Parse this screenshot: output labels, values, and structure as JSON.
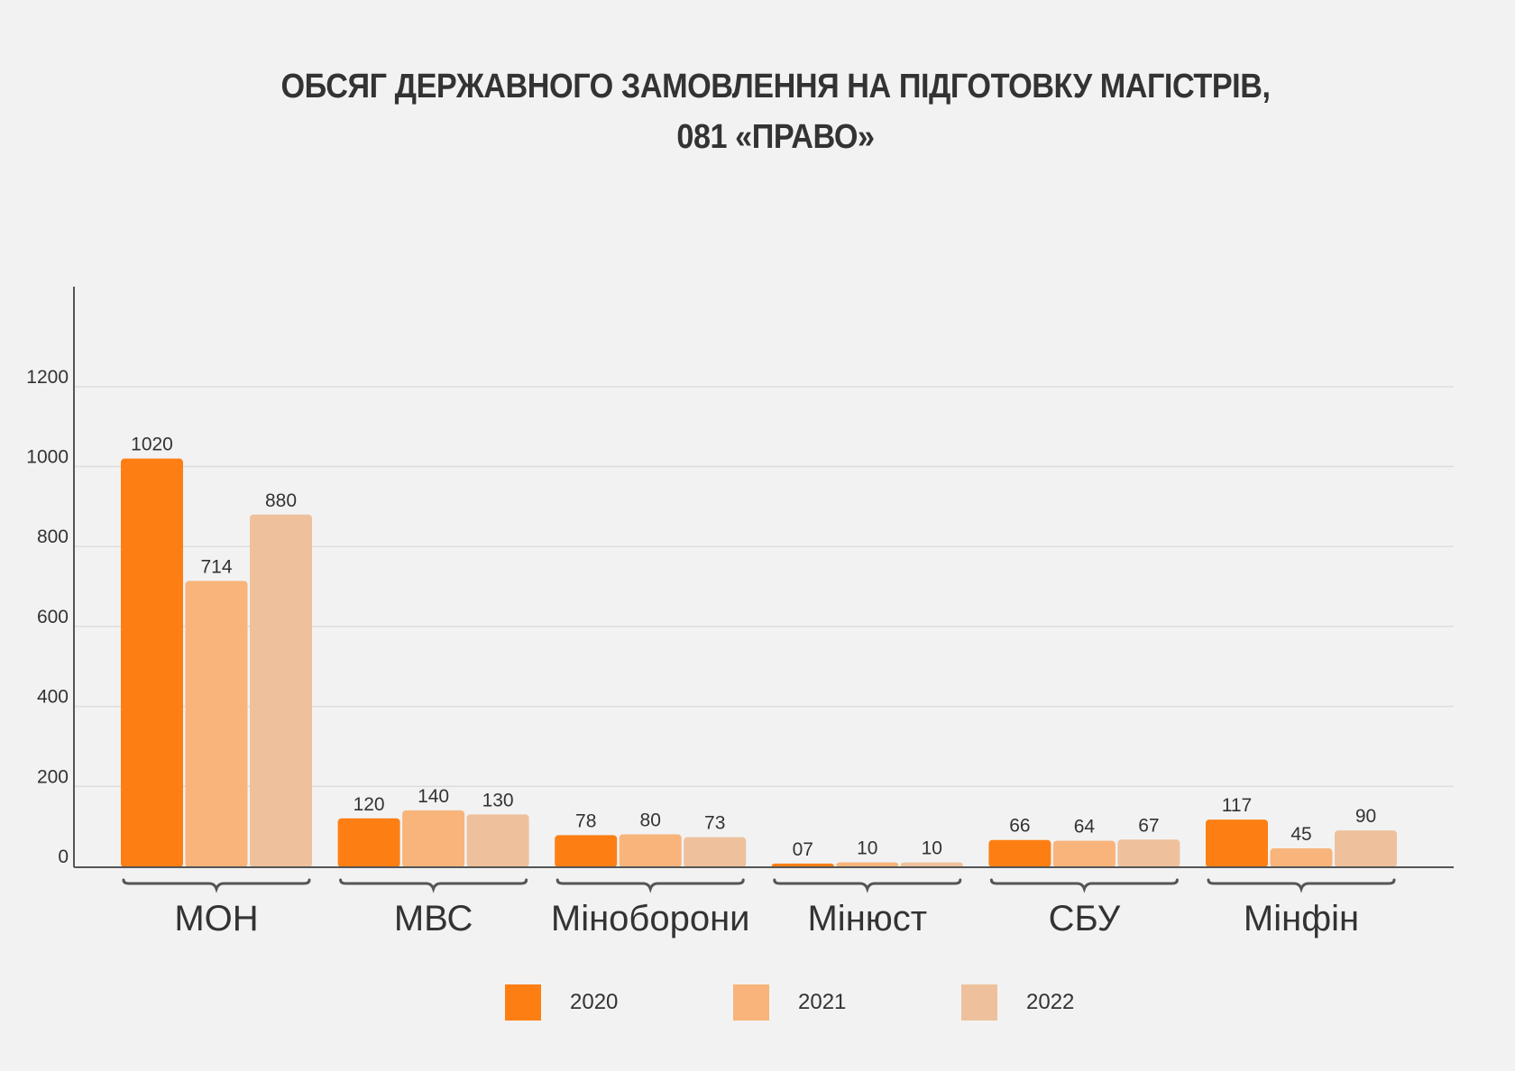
{
  "chart_data": {
    "type": "bar",
    "title": "ОБСЯГ ДЕРЖАВНОГО ЗАМОВЛЕННЯ НА ПІДГОТОВКУ МАГІСТРІВ, 081 «ПРАВО»",
    "title_lines": [
      "ОБСЯГ ДЕРЖАВНОГО ЗАМОВЛЕННЯ НА ПІДГОТОВКУ МАГІСТРІВ,",
      "081 «ПРАВО»"
    ],
    "categories": [
      "МОН",
      "МВС",
      "Міноборони",
      "Мінюст",
      "СБУ",
      "Мінфін"
    ],
    "series": [
      {
        "name": "2020",
        "color": "#fd7f14",
        "values": [
          1020,
          120,
          78,
          7,
          66,
          117
        ],
        "labels": [
          "1020",
          "120",
          "78",
          "07",
          "66",
          "117"
        ]
      },
      {
        "name": "2021",
        "color": "#f8b47a",
        "values": [
          714,
          140,
          80,
          10,
          64,
          45
        ],
        "labels": [
          "714",
          "140",
          "80",
          "10",
          "64",
          "45"
        ]
      },
      {
        "name": "2022",
        "color": "#eec19c",
        "values": [
          880,
          130,
          73,
          10,
          67,
          90
        ],
        "labels": [
          "880",
          "130",
          "73",
          "10",
          "67",
          "90"
        ]
      }
    ],
    "y_ticks": [
      {
        "label": "0",
        "value": 0
      },
      {
        "label": "200",
        "value": 200
      },
      {
        "label": "400",
        "value": 400
      },
      {
        "label": "600",
        "value": 600
      },
      {
        "label": "800",
        "value": 800
      },
      {
        "label": "1000",
        "value": 1000
      },
      {
        "label": "1200",
        "value": 1200
      }
    ],
    "ylim": [
      0,
      1450
    ],
    "grid": true,
    "legend_position": "bottom",
    "xlabel": "",
    "ylabel": ""
  }
}
